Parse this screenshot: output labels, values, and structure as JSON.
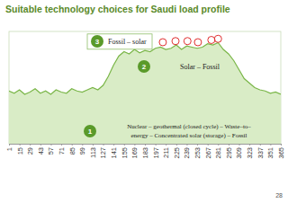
{
  "chart_data": {
    "type": "area",
    "title": "Suitable technology choices for Saudi load profile",
    "footer": "28",
    "color": "#7ab648",
    "x": [
      1,
      8,
      15,
      22,
      29,
      36,
      43,
      50,
      57,
      64,
      71,
      78,
      85,
      92,
      99,
      106,
      113,
      120,
      127,
      134,
      141,
      148,
      155,
      162,
      169,
      176,
      183,
      190,
      197,
      204,
      211,
      218,
      225,
      232,
      239,
      246,
      253,
      260,
      267,
      274,
      281,
      288,
      295,
      302,
      309,
      316,
      323,
      330,
      337,
      344,
      351,
      358,
      365
    ],
    "values": [
      47,
      45,
      48,
      44,
      46,
      49,
      45,
      47,
      44,
      48,
      46,
      45,
      49,
      47,
      46,
      48,
      50,
      48,
      52,
      60,
      70,
      78,
      82,
      80,
      84,
      81,
      83,
      82,
      85,
      86,
      84,
      85,
      88,
      84,
      87,
      86,
      85,
      86,
      89,
      88,
      90,
      84,
      80,
      74,
      66,
      58,
      54,
      50,
      48,
      47,
      45,
      46,
      44
    ],
    "xlim": [
      1,
      365
    ],
    "xticks": [
      1,
      15,
      29,
      43,
      57,
      71,
      85,
      99,
      113,
      127,
      141,
      155,
      169,
      183,
      197,
      211,
      225,
      239,
      253,
      267,
      281,
      295,
      309,
      323,
      337,
      351,
      365
    ],
    "ylim": [
      0,
      100
    ],
    "tick_labels": "x",
    "peak_markers": {
      "x": [
        207,
        224,
        240,
        254,
        272,
        281
      ],
      "values": [
        88,
        89,
        89,
        88,
        90,
        91
      ],
      "color": "#e03030",
      "marker": "circle"
    },
    "annotations": [
      {
        "number": "3",
        "lines": [
          "Fossil – solar"
        ]
      },
      {
        "number": "2",
        "lines": [
          "Solar – Fossil"
        ]
      },
      {
        "number": "1",
        "lines": [
          "Nuclear – geothermal (closed cycle) – Waste–to–",
          "energy – Concentrated solar (storage) – Fossil"
        ]
      }
    ]
  }
}
